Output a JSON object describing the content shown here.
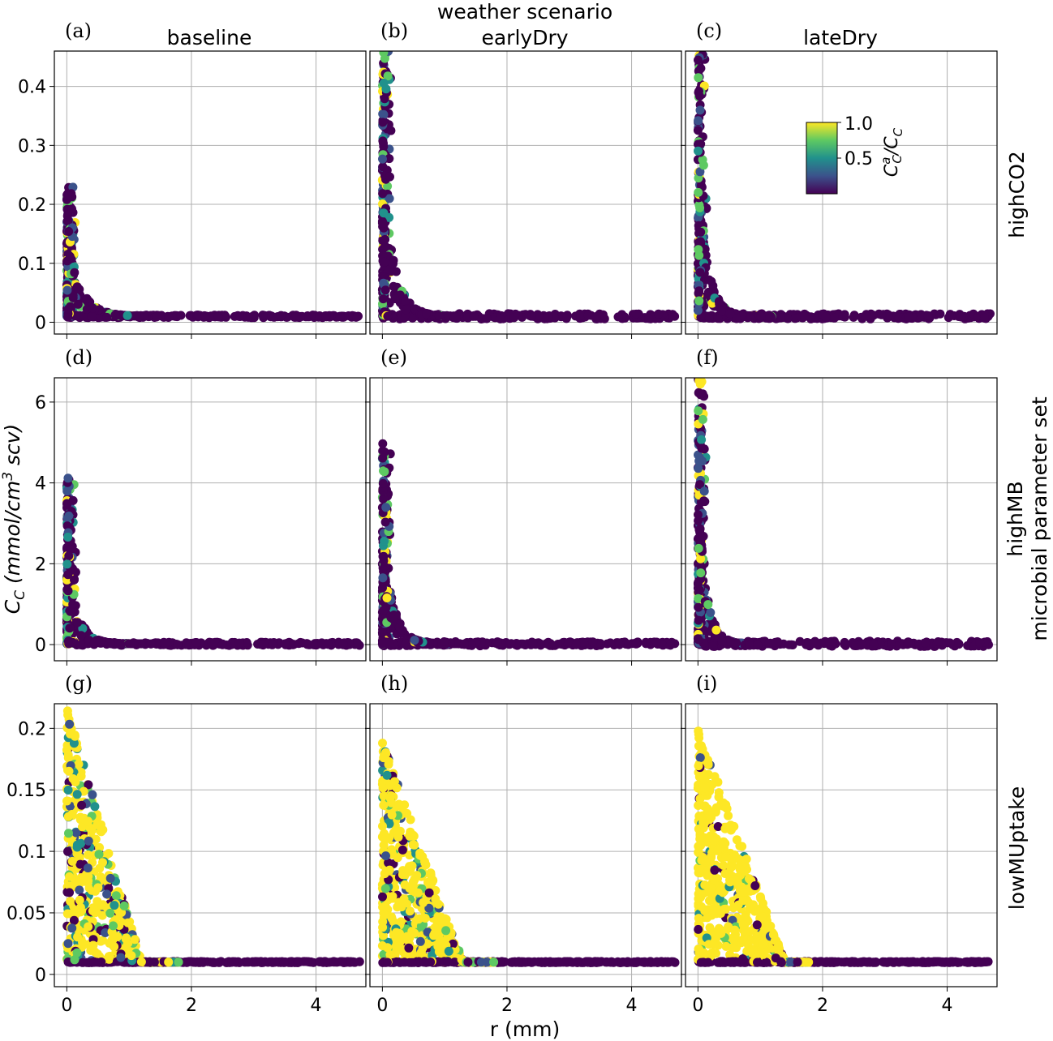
{
  "figure": {
    "super_title": "weather scenario",
    "xlabel": "r (mm)",
    "ylabel_main": "C",
    "ylabel_sub": "C",
    "ylabel_units_pre": " (mmol/cm",
    "ylabel_units_sup": "3",
    "ylabel_units_post": " scv)",
    "row_super_label": "microbial parameter set",
    "colorbar": {
      "label_main": "C",
      "label_sup": "a",
      "label_sub": "C",
      "label_slash": "/",
      "label_main2": "C",
      "label_sub2": "C",
      "ticks": [
        "0.5",
        "1.0"
      ],
      "colormap": [
        "#440154",
        "#3b528b",
        "#21918c",
        "#5ec962",
        "#fde725"
      ]
    },
    "columns": [
      "baseline",
      "earlyDry",
      "lateDry"
    ],
    "rows": [
      "highCO2",
      "highMB",
      "lowMUptake"
    ]
  },
  "chart_data": [
    {
      "panel": "(a)",
      "type": "scatter",
      "column": "baseline",
      "row": "highCO2",
      "xlim": [
        -0.2,
        4.8
      ],
      "ylim": [
        -0.02,
        0.46
      ],
      "yticks": [
        0.0,
        0.1,
        0.2,
        0.3,
        0.4
      ],
      "xticks": [
        0,
        2,
        4
      ],
      "peak": 0.22,
      "decay": 0.22,
      "floor": 0.01,
      "high_ratio": 0.35
    },
    {
      "panel": "(b)",
      "type": "scatter",
      "column": "earlyDry",
      "row": "highCO2",
      "xlim": [
        -0.2,
        4.8
      ],
      "ylim": [
        -0.02,
        0.46
      ],
      "yticks": [
        0.0,
        0.1,
        0.2,
        0.3,
        0.4
      ],
      "xticks": [
        0,
        2,
        4
      ],
      "peak": 0.45,
      "decay": 0.18,
      "floor": 0.01,
      "high_ratio": 0.25
    },
    {
      "panel": "(c)",
      "type": "scatter",
      "column": "lateDry",
      "row": "highCO2",
      "xlim": [
        -0.2,
        4.8
      ],
      "ylim": [
        -0.02,
        0.46
      ],
      "yticks": [
        0.0,
        0.1,
        0.2,
        0.3,
        0.4
      ],
      "xticks": [
        0,
        2,
        4
      ],
      "peak": 0.45,
      "decay": 0.15,
      "floor": 0.01,
      "high_ratio": 0.2
    },
    {
      "panel": "(d)",
      "type": "scatter",
      "column": "baseline",
      "row": "highMB",
      "xlim": [
        -0.2,
        4.8
      ],
      "ylim": [
        -0.4,
        6.6
      ],
      "yticks": [
        0,
        2,
        4,
        6
      ],
      "xticks": [
        0,
        2,
        4
      ],
      "peak": 4.1,
      "decay": 0.16,
      "floor": 0.02,
      "high_ratio": 0.35
    },
    {
      "panel": "(e)",
      "type": "scatter",
      "column": "earlyDry",
      "row": "highMB",
      "xlim": [
        -0.2,
        4.8
      ],
      "ylim": [
        -0.4,
        6.6
      ],
      "yticks": [
        0,
        2,
        4,
        6
      ],
      "xticks": [
        0,
        2,
        4
      ],
      "peak": 5.1,
      "decay": 0.16,
      "floor": 0.02,
      "high_ratio": 0.25
    },
    {
      "panel": "(f)",
      "type": "scatter",
      "column": "lateDry",
      "row": "highMB",
      "xlim": [
        -0.2,
        4.8
      ],
      "ylim": [
        -0.4,
        6.6
      ],
      "yticks": [
        0,
        2,
        4,
        6
      ],
      "xticks": [
        0,
        2,
        4
      ],
      "peak": 6.6,
      "decay": 0.13,
      "floor": 0.02,
      "high_ratio": 0.2
    },
    {
      "panel": "(g)",
      "type": "scatter",
      "column": "baseline",
      "row": "lowMUptake",
      "xlim": [
        -0.2,
        4.8
      ],
      "ylim": [
        -0.01,
        0.22
      ],
      "yticks": [
        0.0,
        0.05,
        0.1,
        0.15,
        0.2
      ],
      "xticks": [
        0,
        2,
        4
      ],
      "peak": 0.21,
      "decay": 1.2,
      "floor": 0.01,
      "high_ratio": 0.55
    },
    {
      "panel": "(h)",
      "type": "scatter",
      "column": "earlyDry",
      "row": "lowMUptake",
      "xlim": [
        -0.2,
        4.8
      ],
      "ylim": [
        -0.01,
        0.22
      ],
      "yticks": [
        0.0,
        0.05,
        0.1,
        0.15,
        0.2
      ],
      "xticks": [
        0,
        2,
        4
      ],
      "peak": 0.18,
      "decay": 1.3,
      "floor": 0.01,
      "high_ratio": 0.7
    },
    {
      "panel": "(i)",
      "type": "scatter",
      "column": "lateDry",
      "row": "lowMUptake",
      "xlim": [
        -0.2,
        4.8
      ],
      "ylim": [
        -0.01,
        0.22
      ],
      "yticks": [
        0.0,
        0.05,
        0.1,
        0.15,
        0.2
      ],
      "xticks": [
        0,
        2,
        4
      ],
      "peak": 0.19,
      "decay": 1.4,
      "floor": 0.01,
      "high_ratio": 0.85
    }
  ]
}
